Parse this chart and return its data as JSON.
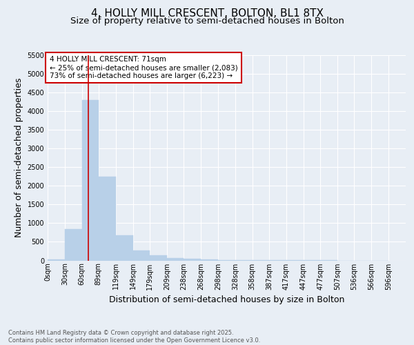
{
  "title_line1": "4, HOLLY MILL CRESCENT, BOLTON, BL1 8TX",
  "title_line2": "Size of property relative to semi-detached houses in Bolton",
  "xlabel": "Distribution of semi-detached houses by size in Bolton",
  "ylabel": "Number of semi-detached properties",
  "footnote": "Contains HM Land Registry data © Crown copyright and database right 2025.\nContains public sector information licensed under the Open Government Licence v3.0.",
  "bar_left_edges": [
    0,
    30,
    60,
    89,
    119,
    149,
    179,
    209,
    238,
    268,
    298,
    328,
    358,
    387,
    417,
    447,
    477,
    507,
    536,
    566
  ],
  "bar_widths": [
    30,
    30,
    29,
    30,
    30,
    30,
    30,
    29,
    30,
    30,
    30,
    30,
    29,
    30,
    30,
    30,
    30,
    29,
    30,
    30
  ],
  "bar_heights": [
    20,
    850,
    4300,
    2250,
    670,
    260,
    140,
    70,
    50,
    30,
    10,
    5,
    3,
    2,
    2,
    1,
    1,
    0,
    0,
    0
  ],
  "bar_color": "#b8d0e8",
  "bar_edgecolor": "#b8d0e8",
  "tick_labels": [
    "0sqm",
    "30sqm",
    "60sqm",
    "89sqm",
    "119sqm",
    "149sqm",
    "179sqm",
    "209sqm",
    "238sqm",
    "268sqm",
    "298sqm",
    "328sqm",
    "358sqm",
    "387sqm",
    "417sqm",
    "447sqm",
    "477sqm",
    "507sqm",
    "536sqm",
    "566sqm",
    "596sqm"
  ],
  "property_line_x": 71,
  "property_line_color": "#cc0000",
  "annotation_line1": "4 HOLLY MILL CRESCENT: 71sqm",
  "annotation_line2": "← 25% of semi-detached houses are smaller (2,083)",
  "annotation_line3": "73% of semi-detached houses are larger (6,223) →",
  "ylim": [
    0,
    5500
  ],
  "yticks": [
    0,
    500,
    1000,
    1500,
    2000,
    2500,
    3000,
    3500,
    4000,
    4500,
    5000,
    5500
  ],
  "background_color": "#e8eef5",
  "plot_bg_color": "#e8eef5",
  "grid_color": "#ffffff",
  "title1_fontsize": 11,
  "title2_fontsize": 9.5,
  "axis_label_fontsize": 9,
  "tick_fontsize": 7,
  "annotation_fontsize": 7.5,
  "footnote_fontsize": 6,
  "xlim_max": 626
}
